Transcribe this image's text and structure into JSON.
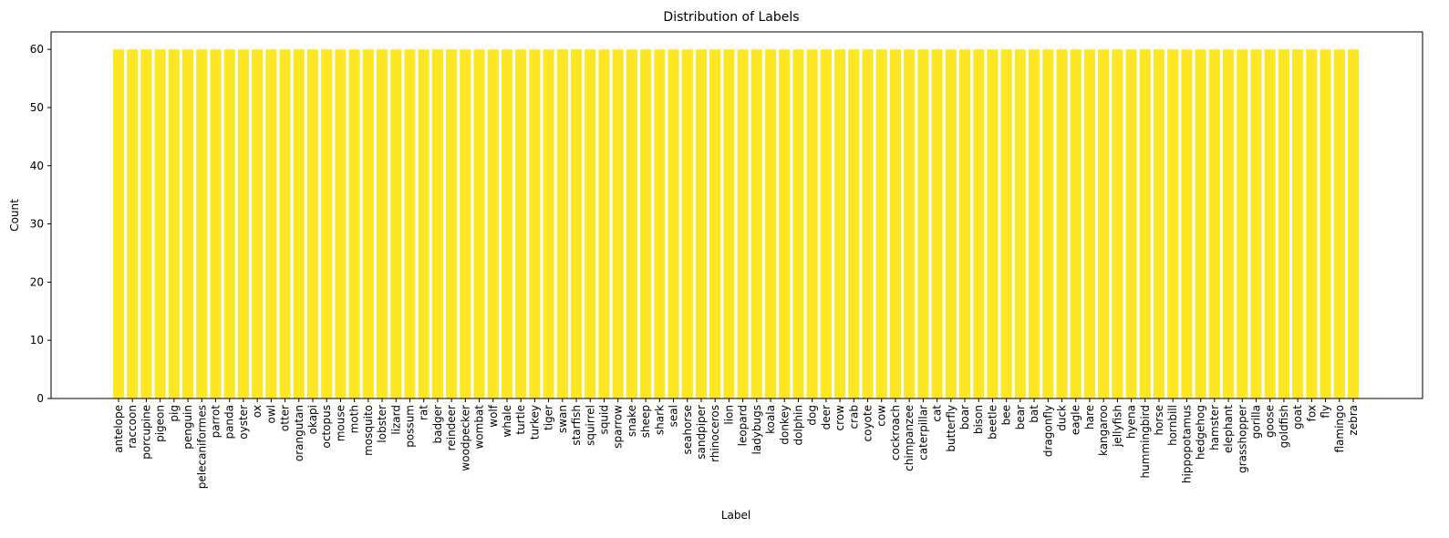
{
  "chart_data": {
    "type": "bar",
    "title": "Distribution of Labels",
    "xlabel": "Label",
    "ylabel": "Count",
    "ylim": [
      0,
      63
    ],
    "yticks": [
      0,
      10,
      20,
      30,
      40,
      50,
      60
    ],
    "grid": false,
    "bar_color": "#fde725",
    "categories": [
      "antelope",
      "raccoon",
      "porcupine",
      "pigeon",
      "pig",
      "penguin",
      "pelecaniformes",
      "parrot",
      "panda",
      "oyster",
      "ox",
      "owl",
      "otter",
      "orangutan",
      "okapi",
      "octopus",
      "mouse",
      "moth",
      "mosquito",
      "lobster",
      "lizard",
      "possum",
      "rat",
      "badger",
      "reindeer",
      "woodpecker",
      "wombat",
      "wolf",
      "whale",
      "turtle",
      "turkey",
      "tiger",
      "swan",
      "starfish",
      "squirrel",
      "squid",
      "sparrow",
      "snake",
      "sheep",
      "shark",
      "seal",
      "seahorse",
      "sandpiper",
      "rhinoceros",
      "lion",
      "leopard",
      "ladybugs",
      "koala",
      "donkey",
      "dolphin",
      "dog",
      "deer",
      "crow",
      "crab",
      "coyote",
      "cow",
      "cockroach",
      "chimpanzee",
      "caterpillar",
      "cat",
      "butterfly",
      "boar",
      "bison",
      "beetle",
      "bee",
      "bear",
      "bat",
      "dragonfly",
      "duck",
      "eagle",
      "hare",
      "kangaroo",
      "jellyfish",
      "hyena",
      "hummingbird",
      "horse",
      "hornbill",
      "hippopotamus",
      "hedgehog",
      "hamster",
      "elephant",
      "grasshopper",
      "gorilla",
      "goose",
      "goldfish",
      "goat",
      "fox",
      "fly",
      "flamingo",
      "zebra"
    ],
    "values": [
      60,
      60,
      60,
      60,
      60,
      60,
      60,
      60,
      60,
      60,
      60,
      60,
      60,
      60,
      60,
      60,
      60,
      60,
      60,
      60,
      60,
      60,
      60,
      60,
      60,
      60,
      60,
      60,
      60,
      60,
      60,
      60,
      60,
      60,
      60,
      60,
      60,
      60,
      60,
      60,
      60,
      60,
      60,
      60,
      60,
      60,
      60,
      60,
      60,
      60,
      60,
      60,
      60,
      60,
      60,
      60,
      60,
      60,
      60,
      60,
      60,
      60,
      60,
      60,
      60,
      60,
      60,
      60,
      60,
      60,
      60,
      60,
      60,
      60,
      60,
      60,
      60,
      60,
      60,
      60,
      60,
      60,
      60,
      60,
      60,
      60,
      60,
      60,
      60,
      60
    ]
  }
}
